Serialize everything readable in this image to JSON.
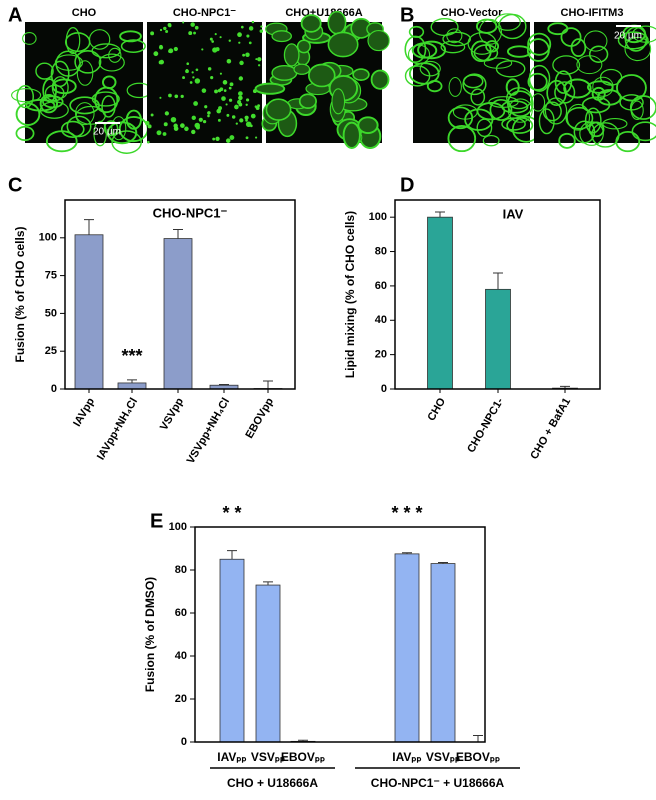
{
  "figure": {
    "panel_labels": [
      "A",
      "B",
      "C",
      "D",
      "E"
    ],
    "images": [
      {
        "caption": "CHO",
        "scale_bar": "20 µm"
      },
      {
        "caption": "CHO-NPC1⁻"
      },
      {
        "caption": "CHO+U18666A"
      },
      {
        "caption": "CHO-Vector"
      },
      {
        "caption": "CHO-IFITM3",
        "scale_bar": "20 µm"
      }
    ]
  },
  "chart_data": [
    {
      "type": "bar",
      "title": "CHO-NPC1⁻",
      "ylabel": "Fusion (% of CHO cells)",
      "categories": [
        "IAVpp",
        "IAVpp+NH₄Cl",
        "VSVpp",
        "VSVpp+NH₄Cl",
        "EBOVpp"
      ],
      "series": [
        {
          "values": [
            102,
            4,
            99.5,
            2.5,
            0.3
          ],
          "errors": [
            10,
            2,
            6,
            0.5,
            5
          ],
          "color": "#8c9dca"
        }
      ],
      "annotations": [
        "***"
      ],
      "ylim": [
        0,
        125
      ],
      "yticks": [
        0,
        25,
        50,
        75,
        100
      ]
    },
    {
      "type": "bar",
      "title": "IAV",
      "ylabel": "Lipid mixing (% of CHO cells)",
      "categories": [
        "CHO",
        "CHO-NPC1-",
        "CHO + BafA1"
      ],
      "series": [
        {
          "values": [
            100,
            58,
            0.5
          ],
          "errors": [
            3,
            9.5,
            1
          ],
          "color": "#2aa597"
        }
      ],
      "ylim": [
        0,
        110
      ],
      "yticks": [
        0,
        20,
        40,
        60,
        80,
        100
      ]
    },
    {
      "type": "bar",
      "ylabel": "Fusion (% of DMSO)",
      "categories": [
        "IAVₚₚ",
        "VSVₚₚ",
        "EBOVₚₚ",
        "IAVₚₚ",
        "VSVₚₚ",
        "EBOVₚₚ"
      ],
      "group_labels": [
        "CHO + U18666A",
        "CHO-NPC1⁻ + U18666A"
      ],
      "series": [
        {
          "values": [
            85,
            73,
            0.3,
            87.5,
            83,
            0
          ],
          "errors": [
            4,
            1.5,
            0.5,
            0.5,
            0.5,
            3
          ],
          "color": "#93b4f2"
        }
      ],
      "annotations": [
        "* *",
        "* * *"
      ],
      "ylim": [
        0,
        100
      ],
      "yticks": [
        0,
        20,
        40,
        60,
        80,
        100
      ]
    }
  ]
}
